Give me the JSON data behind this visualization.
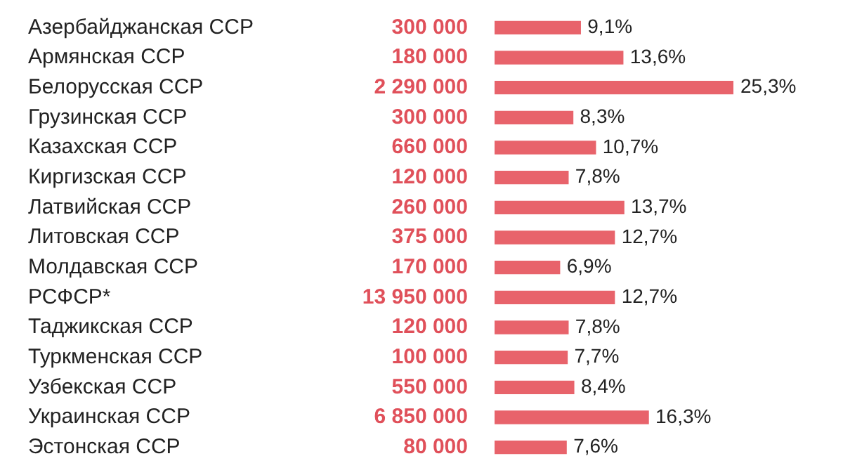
{
  "chart_data": {
    "type": "bar",
    "orientation": "horizontal",
    "categories": [
      "Азербайджанская ССР",
      "Армянская ССР",
      "Белорусская ССР",
      "Грузинская ССР",
      "Казахская ССР",
      "Киргизская ССР",
      "Латвийская ССР",
      "Литовская ССР",
      "Молдавская ССР",
      "РСФСР*",
      "Таджикская ССР",
      "Туркменская ССР",
      "Узбекская ССР",
      "Украинская ССР",
      "Эстонская ССР"
    ],
    "values": [
      9.1,
      13.6,
      25.3,
      8.3,
      10.7,
      7.8,
      13.7,
      12.7,
      6.9,
      12.7,
      7.8,
      7.7,
      8.4,
      16.3,
      7.6
    ],
    "value_labels": [
      "9,1%",
      "13,6%",
      "25,3%",
      "8,3%",
      "10,7%",
      "7,8%",
      "13,7%",
      "12,7%",
      "6,9%",
      "12,7%",
      "7,8%",
      "7,7%",
      "8,4%",
      "16,3%",
      "7,6%"
    ],
    "color": "#e8636b",
    "annotations": [
      "300 000",
      "180 000",
      "2 290 000",
      "300 000",
      "660 000",
      "120 000",
      "260 000",
      "375 000",
      "170 000",
      "13 950 000",
      "120 000",
      "100 000",
      "550 000",
      "6 850 000",
      "80 000"
    ],
    "legend": false
  }
}
